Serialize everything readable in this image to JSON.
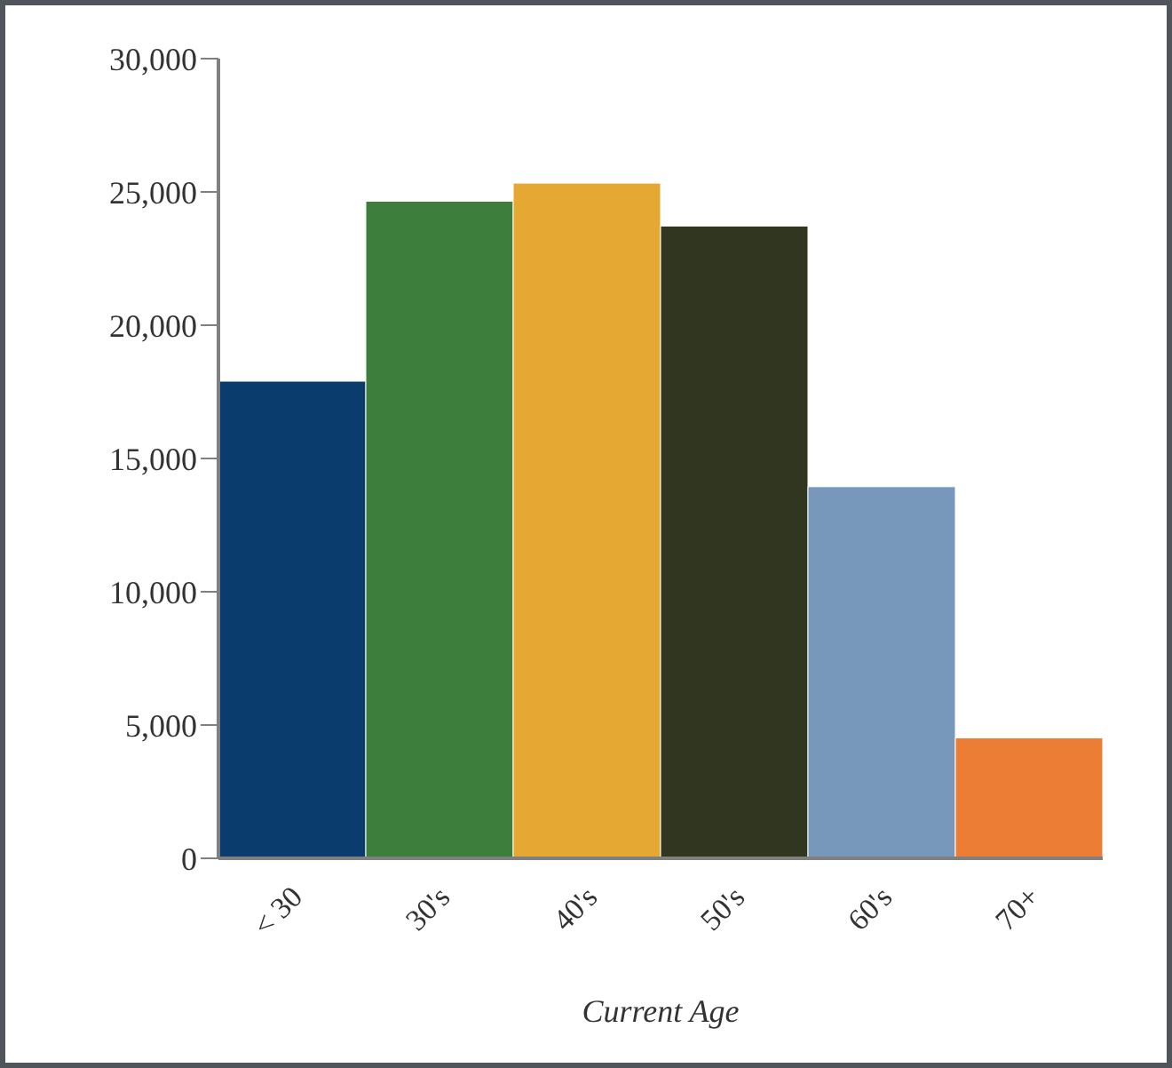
{
  "chart_data": {
    "type": "bar",
    "xlabel": "Current Age",
    "categories": [
      "< 30",
      "30's",
      "40's",
      "50's",
      "60's",
      "70+"
    ],
    "values": [
      17900,
      24650,
      25330,
      23720,
      13940,
      4520
    ],
    "colors": [
      "#0b3c6e",
      "#3d7e3d",
      "#e5a832",
      "#313621",
      "#7797bb",
      "#ec7d35"
    ],
    "ylim": [
      0,
      30000
    ],
    "yticks": [
      0,
      {
        "value": 5000,
        "label": "5,000"
      },
      {
        "value": 10000,
        "label": "10,000"
      },
      {
        "value": 15000,
        "label": "15,000"
      },
      {
        "value": 20000,
        "label": "20,000"
      },
      {
        "value": 25000,
        "label": "25,000"
      },
      {
        "value": 30000,
        "label": "30,000"
      }
    ],
    "grid": false,
    "legend": false
  }
}
